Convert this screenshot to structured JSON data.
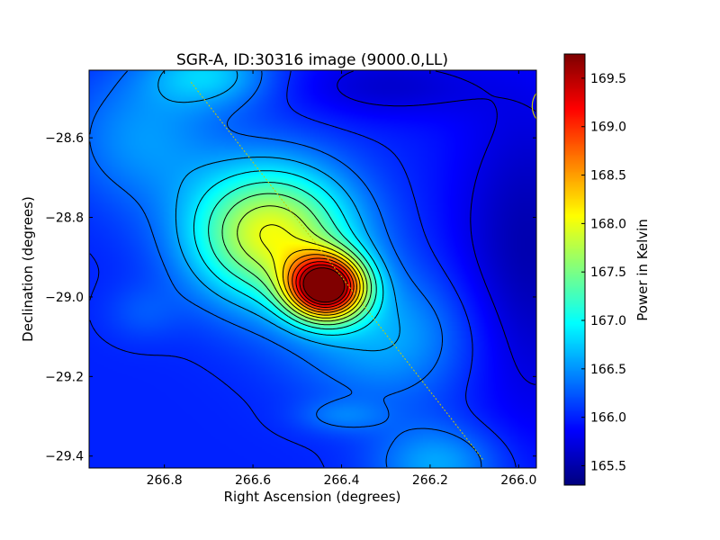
{
  "chart_data": {
    "type": "heatmap",
    "title": "SGR-A, ID:30316 image (9000.0,LL)",
    "xlabel": "Right Ascension (degrees)",
    "ylabel": "Declination (degrees)",
    "colorbar_label": "Power in Kelvin",
    "xlim": [
      266.97,
      265.96
    ],
    "ylim": [
      -29.43,
      -28.43
    ],
    "xticks": [
      266.8,
      266.6,
      266.4,
      266.2,
      266.0
    ],
    "xtick_labels": [
      "266.8",
      "266.6",
      "266.4",
      "266.2",
      "266.0"
    ],
    "yticks": [
      -28.6,
      -28.8,
      -29.0,
      -29.2,
      -29.4
    ],
    "ytick_labels": [
      "−28.6",
      "−28.8",
      "−29.0",
      "−29.2",
      "−29.4"
    ],
    "colorbar_range": [
      165.3,
      169.75
    ],
    "colorbar_ticks": [
      165.5,
      166.0,
      166.5,
      167.0,
      167.5,
      168.0,
      168.5,
      169.0,
      169.5
    ],
    "colorbar_tick_labels": [
      "165.5",
      "166.0",
      "166.5",
      "167.0",
      "167.5",
      "168.0",
      "168.5",
      "169.0",
      "169.5"
    ],
    "colormap": "jet",
    "background_level": 166.0,
    "components": [
      {
        "ra": 266.435,
        "dec": -28.975,
        "peak": 169.7,
        "sigma_ra": 0.06,
        "sigma_dec": 0.055
      },
      {
        "ra": 266.56,
        "dec": -28.84,
        "peak": 168.0,
        "sigma_ra": 0.13,
        "sigma_dec": 0.12
      },
      {
        "ra": 266.3,
        "dec": -29.1,
        "peak": 166.6,
        "sigma_ra": 0.15,
        "sigma_dec": 0.12
      },
      {
        "ra": 266.85,
        "dec": -28.6,
        "peak": 166.5,
        "sigma_ra": 0.12,
        "sigma_dec": 0.12
      },
      {
        "ra": 266.7,
        "dec": -28.44,
        "peak": 166.7,
        "sigma_ra": 0.1,
        "sigma_dec": 0.06
      },
      {
        "ra": 266.18,
        "dec": -29.42,
        "peak": 166.6,
        "sigma_ra": 0.1,
        "sigma_dec": 0.07
      },
      {
        "ra": 266.4,
        "dec": -29.3,
        "peak": 166.3,
        "sigma_ra": 0.07,
        "sigma_dec": 0.03
      },
      {
        "ra": 266.85,
        "dec": -29.04,
        "peak": 166.2,
        "sigma_ra": 0.06,
        "sigma_dec": 0.05
      },
      {
        "ra": 265.98,
        "dec": -28.9,
        "peak": -0.5,
        "sigma_ra": 0.12,
        "sigma_dec": 0.3
      },
      {
        "ra": 266.3,
        "dec": -28.47,
        "peak": -0.35,
        "sigma_ra": 0.15,
        "sigma_dec": 0.06
      }
    ],
    "contour_step": 0.28,
    "galactic_plane": {
      "start": [
        266.74,
        -28.46
      ],
      "end": [
        266.08,
        -29.41
      ],
      "color": "#cccc00"
    },
    "beam": {
      "ra": 265.92,
      "dec": -28.52,
      "radius_deg": 0.055,
      "color": "#cccc00"
    }
  }
}
